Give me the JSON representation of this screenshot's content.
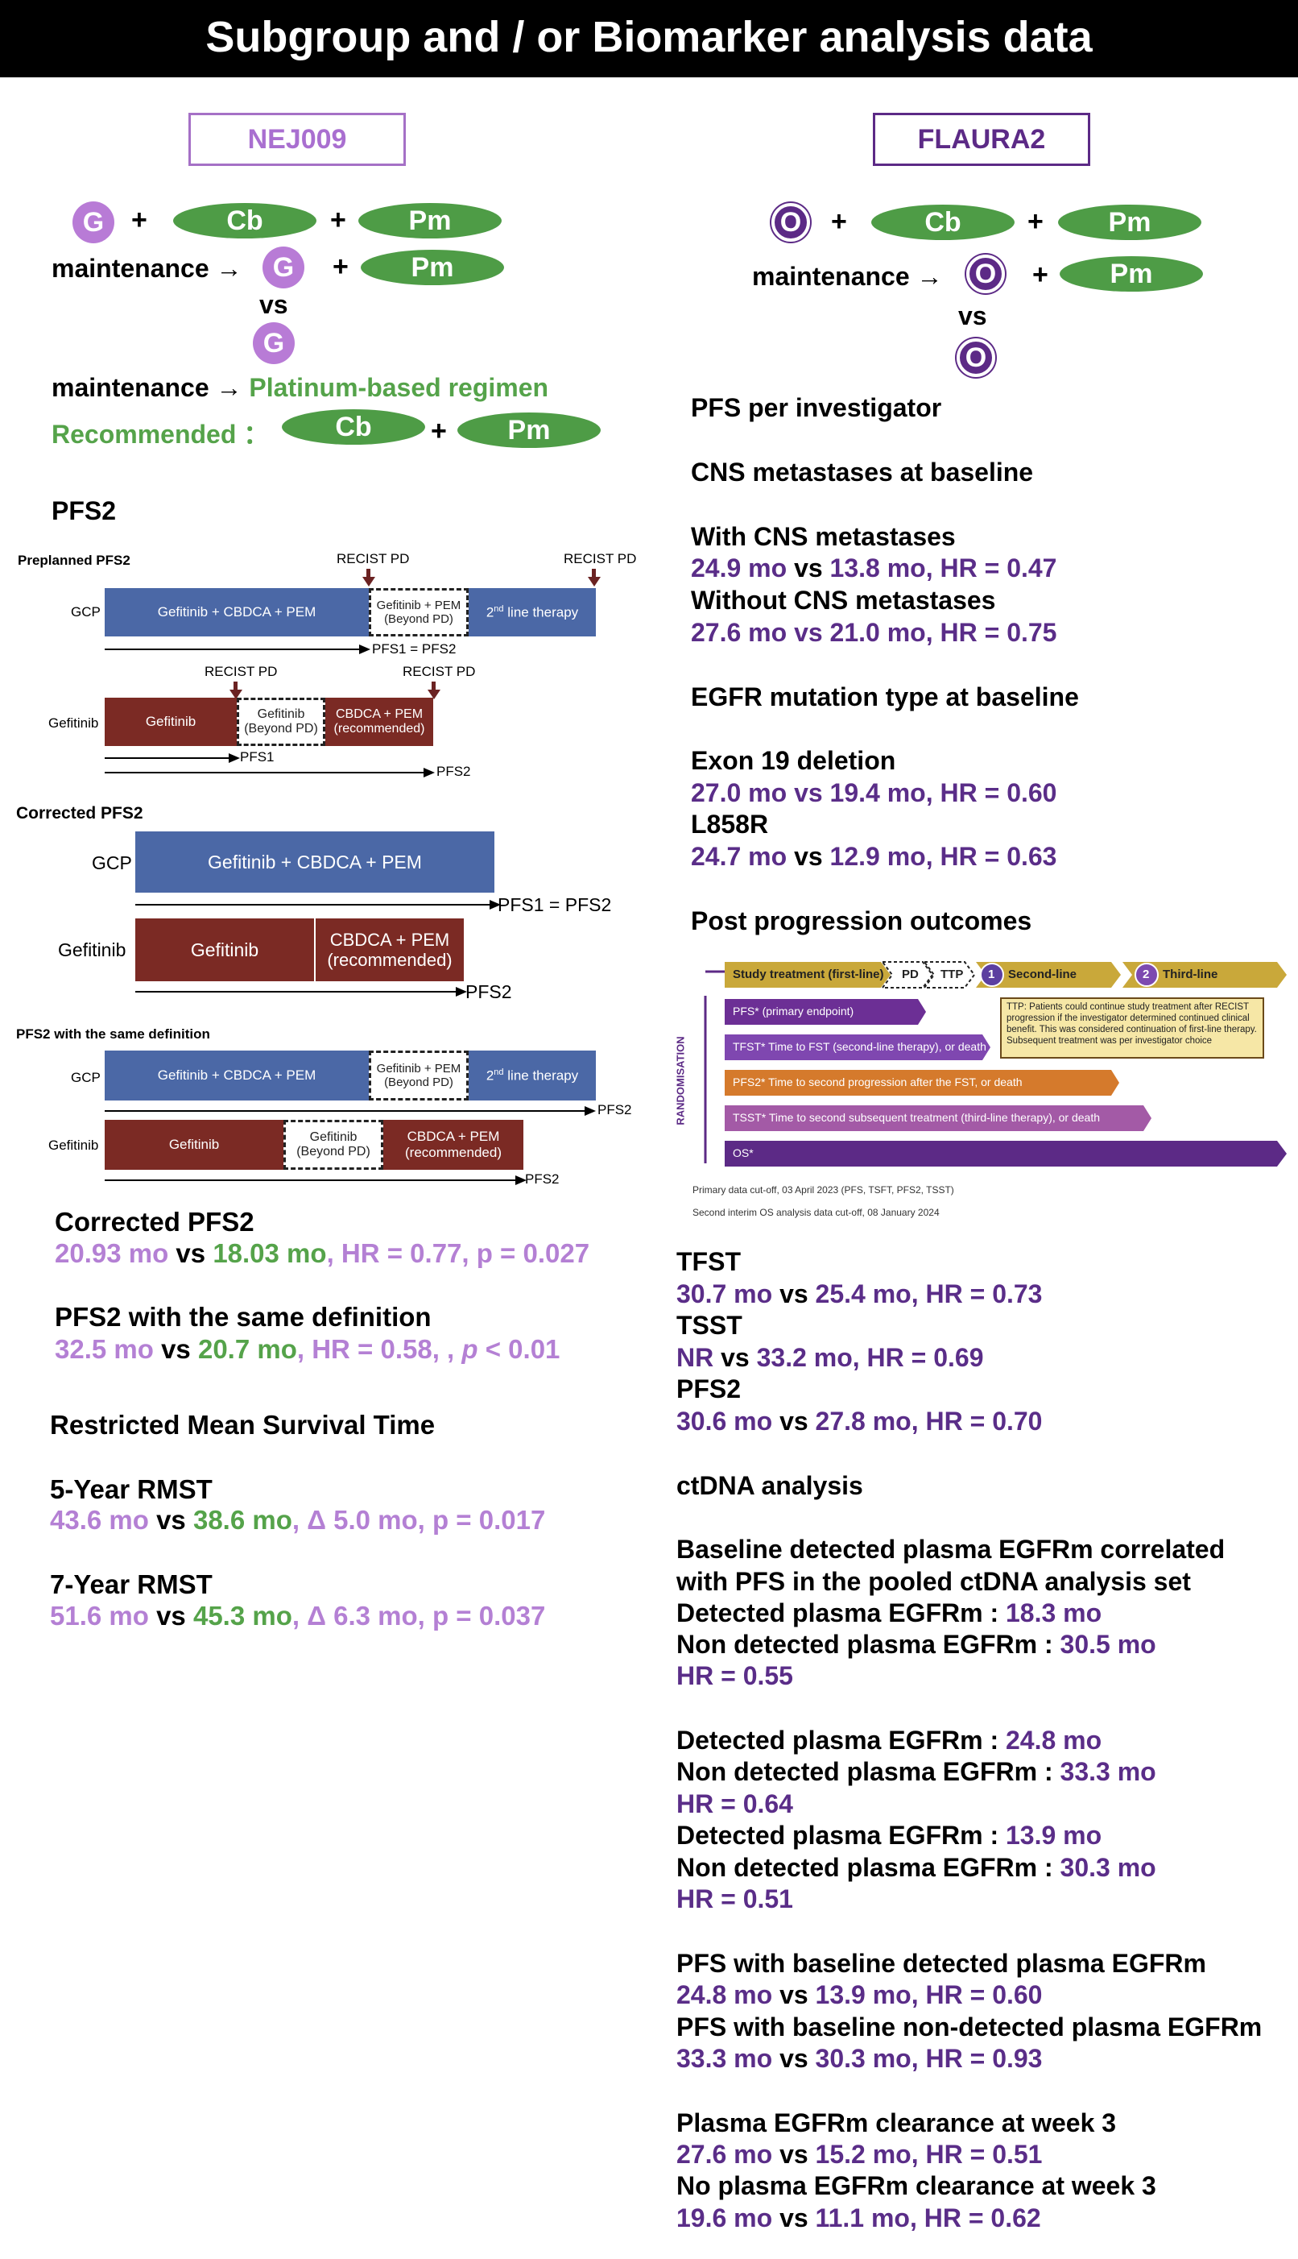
{
  "title": "Subgroup and / or Biomarker analysis data",
  "left": {
    "box_title": "NEJ009",
    "regimen": {
      "g": "G",
      "plus": "+",
      "cb": "Cb",
      "pm": "Pm",
      "maintenance": "maintenance →",
      "vs": "vs",
      "maintenance2": "maintenance →",
      "platinum": "Platinum-based regimen",
      "recommended": "Recommended",
      "colon": "："
    },
    "pfs2_heading": "PFS2",
    "diagram": {
      "preplanned_title": "Preplanned PFS2",
      "recist_pd": "RECIST PD",
      "gcp": "GCP",
      "gef_cbdca_pem": "Gefitinib + CBDCA + PEM",
      "gef_pem_beyond": "Gefitinib + PEM (Beyond PD)",
      "second_line": "2nd line therapy",
      "pfs1_eq_pfs2": "PFS1 = PFS2",
      "gefitinib": "Gefitinib",
      "gef_beyond": "Gefitinib (Beyond PD)",
      "cbdca_pem_rec": "CBDCA + PEM (recommended)",
      "pfs1": "PFS1",
      "pfs2": "PFS2",
      "corrected_title": "Corrected PFS2",
      "same_def_title": "PFS2 with the same definition"
    },
    "corrected_pfs2": {
      "heading": "Corrected PFS2",
      "a": "20.93 mo",
      "vs": "vs",
      "b": "18.03 mo",
      "c": ", HR = 0.77, p = 0.027"
    },
    "same_def": {
      "heading": "PFS2 with the same definition",
      "a": "32.5 mo",
      "vs": "vs",
      "b": "20.7 mo",
      "c": ", HR = 0.58, , ",
      "p": "p",
      "d": " < 0.01"
    },
    "rmst_heading": "Restricted Mean Survival Time",
    "rmst5": {
      "heading": "5-Year RMST",
      "a": "43.6 mo",
      "vs": "vs",
      "b": "38.6 mo",
      "c": ",  Δ 5.0 mo, p = 0.017"
    },
    "rmst7": {
      "heading": "7-Year RMST",
      "a": "51.6 mo",
      "vs": "vs",
      "b": "45.3 mo",
      "c": ",  Δ 6.3 mo, p = 0.037"
    }
  },
  "right": {
    "box_title": "FLAURA2",
    "regimen": {
      "o": "O",
      "plus": "+",
      "cb": "Cb",
      "pm": "Pm",
      "maintenance": "maintenance →",
      "vs": "vs"
    },
    "pfs_inv": "PFS per investigator",
    "cns_heading": "CNS metastases at baseline",
    "with_cns": "With CNS metastases",
    "with_cns_a": "24.9 mo",
    "with_cns_vs": "vs",
    "with_cns_b": "13.8 mo",
    "with_cns_c": ", HR = 0.47",
    "without_cns": "Without CNS metastases",
    "without_cns_a": "27.6 mo vs 21.0 mo",
    "without_cns_c": ", HR = 0.75",
    "egfr_heading": "EGFR mutation type at baseline",
    "ex19": "Exon 19 deletion",
    "ex19_a": "27.0 mo vs 19.4 mo",
    "ex19_c": ", HR = 0.60",
    "l858r": "L858R",
    "l858r_a": "24.7 mo",
    "l858r_vs": "vs",
    "l858r_b": "12.9 mo",
    "l858r_c": ", HR = 0.63",
    "post_heading": "Post progression outcomes",
    "fig": {
      "study_treatment": "Study treatment (first-line)",
      "pd": "PD",
      "ttp": "TTP",
      "n1": "1",
      "second_line": "Second-line",
      "n2": "2",
      "third_line": "Third-line",
      "randomisation": "RANDOMISATION",
      "pfs_ep": "PFS* (primary endpoint)",
      "tfst": "TFST* Time to FST (second-line therapy), or death",
      "pfs2": "PFS2* Time to second progression after the FST, or death",
      "tsst": "TSST* Time to second subsequent treatment (third-line therapy), or death",
      "os": "OS*",
      "ttp_note": "TTP: Patients could continue study treatment after RECIST progression if the investigator determined continued clinical benefit. This was considered continuation of first-line therapy. Subsequent treatment was per investigator choice",
      "foot1": "Primary data cut-off, 03 April 2023 (PFS, TSFT, PFS2, TSST)",
      "foot2": "Second interim OS analysis data cut-off, 08 January 2024"
    },
    "tfst": "TFST",
    "tfst_a": "30.7 mo",
    "tfst_vs": "vs",
    "tfst_b": "25.4 mo",
    "tfst_c": ", HR = 0.73",
    "tsst": "TSST",
    "tsst_a": "NR",
    "tsst_vs": "vs",
    "tsst_b": "33.2 mo",
    "tsst_c": ", HR = 0.69",
    "pfs2": "PFS2",
    "pfs2_a": "30.6 mo",
    "pfs2_vs": "vs",
    "pfs2_b": "27.8 mo",
    "pfs2_c": ", HR = 0.70",
    "ctdna": "ctDNA analysis",
    "base1": "Baseline detected plasma EGFRm correlated",
    "base2": "with PFS in the pooled ctDNA analysis set",
    "det_label": "Detected plasma EGFRm : ",
    "det1": "18.3 mo",
    "nondet_label": "Non detected plasma EGFRm : ",
    "nondet1": "30.5 mo",
    "hr1": "HR = 0.55",
    "det2": "24.8 mo",
    "nondet2": "33.3 mo",
    "hr2": "HR = 0.64",
    "det3": "13.9 mo",
    "nondet3": "30.3 mo",
    "hr3": "HR = 0.51",
    "pfs_det": "PFS with baseline detected plasma EGFRm",
    "pfs_det_a": "24.8 mo",
    "pfs_det_vs": "vs",
    "pfs_det_b": "13.9 mo",
    "pfs_det_c": ", HR = 0.60",
    "pfs_nondet": "PFS with baseline non-detected plasma EGFRm",
    "pfs_nondet_a": "33.3 mo",
    "pfs_nondet_vs": "vs",
    "pfs_nondet_b": "30.3 mo",
    "pfs_nondet_c": ", HR = 0.93",
    "clear": "Plasma EGFRm clearance at week 3",
    "clear_a": "27.6 mo",
    "clear_vs": "vs",
    "clear_b": "15.2 mo",
    "clear_c": ", HR = 0.51",
    "noclear": "No plasma EGFRm clearance at week 3",
    "noclear_a": "19.6 mo",
    "noclear_vs": "vs",
    "noclear_b": "11.1 mo",
    "noclear_c": ", HR = 0.62"
  }
}
